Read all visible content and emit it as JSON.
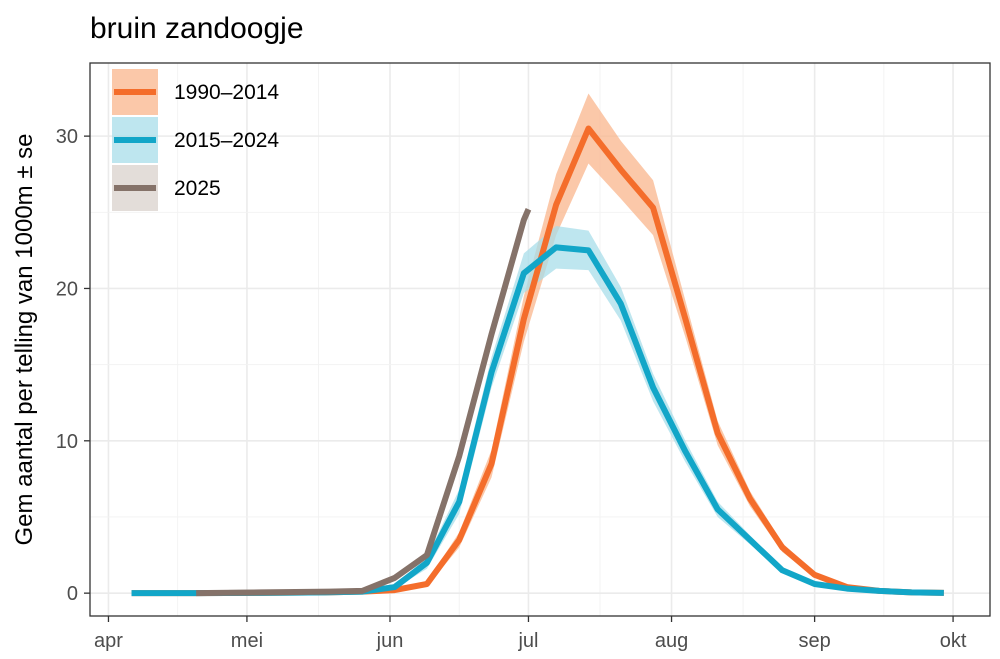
{
  "chart_data": {
    "type": "line",
    "title": "bruin zandoogje",
    "ylabel": "Gem aantal per telling van 1000m ± se",
    "xlabel": "",
    "x_ticks": [
      "apr",
      "mei",
      "jun",
      "jul",
      "aug",
      "sep",
      "okt"
    ],
    "x_tick_days": [
      91,
      121,
      152,
      182,
      213,
      244,
      274
    ],
    "xlim": [
      87,
      282
    ],
    "ylim": [
      -1.5,
      34.8
    ],
    "y_ticks": [
      0,
      10,
      20,
      30
    ],
    "grid": true,
    "legend_position": "top-left",
    "x_unit": "day of year",
    "series": [
      {
        "name": "1990–2014",
        "color": "#F46D2B",
        "band_color": "#F9B68C",
        "x": [
          96,
          110,
          124,
          138,
          146,
          153,
          160,
          167,
          174,
          181,
          188,
          195,
          202,
          209,
          216,
          223,
          230,
          237,
          244,
          251,
          258,
          265,
          272
        ],
        "y": [
          0,
          0,
          0.02,
          0.05,
          0.1,
          0.2,
          0.6,
          3.5,
          8.5,
          18,
          25.5,
          30.5,
          27.8,
          25.3,
          18,
          10.5,
          6.2,
          3,
          1.2,
          0.4,
          0.15,
          0.05,
          0.02
        ],
        "se": [
          0,
          0,
          0,
          0.01,
          0.03,
          0.06,
          0.15,
          0.5,
          0.9,
          1.5,
          2.0,
          2.3,
          1.9,
          1.8,
          1.2,
          0.8,
          0.5,
          0.3,
          0.15,
          0.06,
          0.03,
          0.01,
          0
        ]
      },
      {
        "name": "2015–2024",
        "color": "#12A6C8",
        "band_color": "#A8DDEA",
        "x": [
          96,
          110,
          124,
          138,
          146,
          153,
          160,
          167,
          174,
          181,
          188,
          195,
          202,
          209,
          216,
          223,
          230,
          237,
          244,
          251,
          258,
          265,
          272
        ],
        "y": [
          0,
          0,
          0.02,
          0.05,
          0.1,
          0.4,
          2.0,
          6.0,
          14.5,
          21,
          22.7,
          22.5,
          19,
          13.5,
          9.3,
          5.5,
          3.5,
          1.5,
          0.6,
          0.3,
          0.15,
          0.05,
          0.02
        ],
        "se": [
          0,
          0,
          0,
          0.01,
          0.03,
          0.1,
          0.4,
          0.8,
          1.0,
          1.3,
          1.4,
          1.3,
          1.1,
          0.9,
          0.7,
          0.5,
          0.3,
          0.15,
          0.06,
          0.03,
          0.02,
          0.01,
          0
        ]
      },
      {
        "name": "2025",
        "color": "#857269",
        "band_color": "#D9D1CC",
        "x": [
          110,
          124,
          139,
          146,
          153,
          160,
          167,
          174,
          181,
          182
        ],
        "y": [
          0,
          0.05,
          0.1,
          0.15,
          1.0,
          2.5,
          9,
          17,
          24.5,
          25.2
        ]
      }
    ]
  }
}
